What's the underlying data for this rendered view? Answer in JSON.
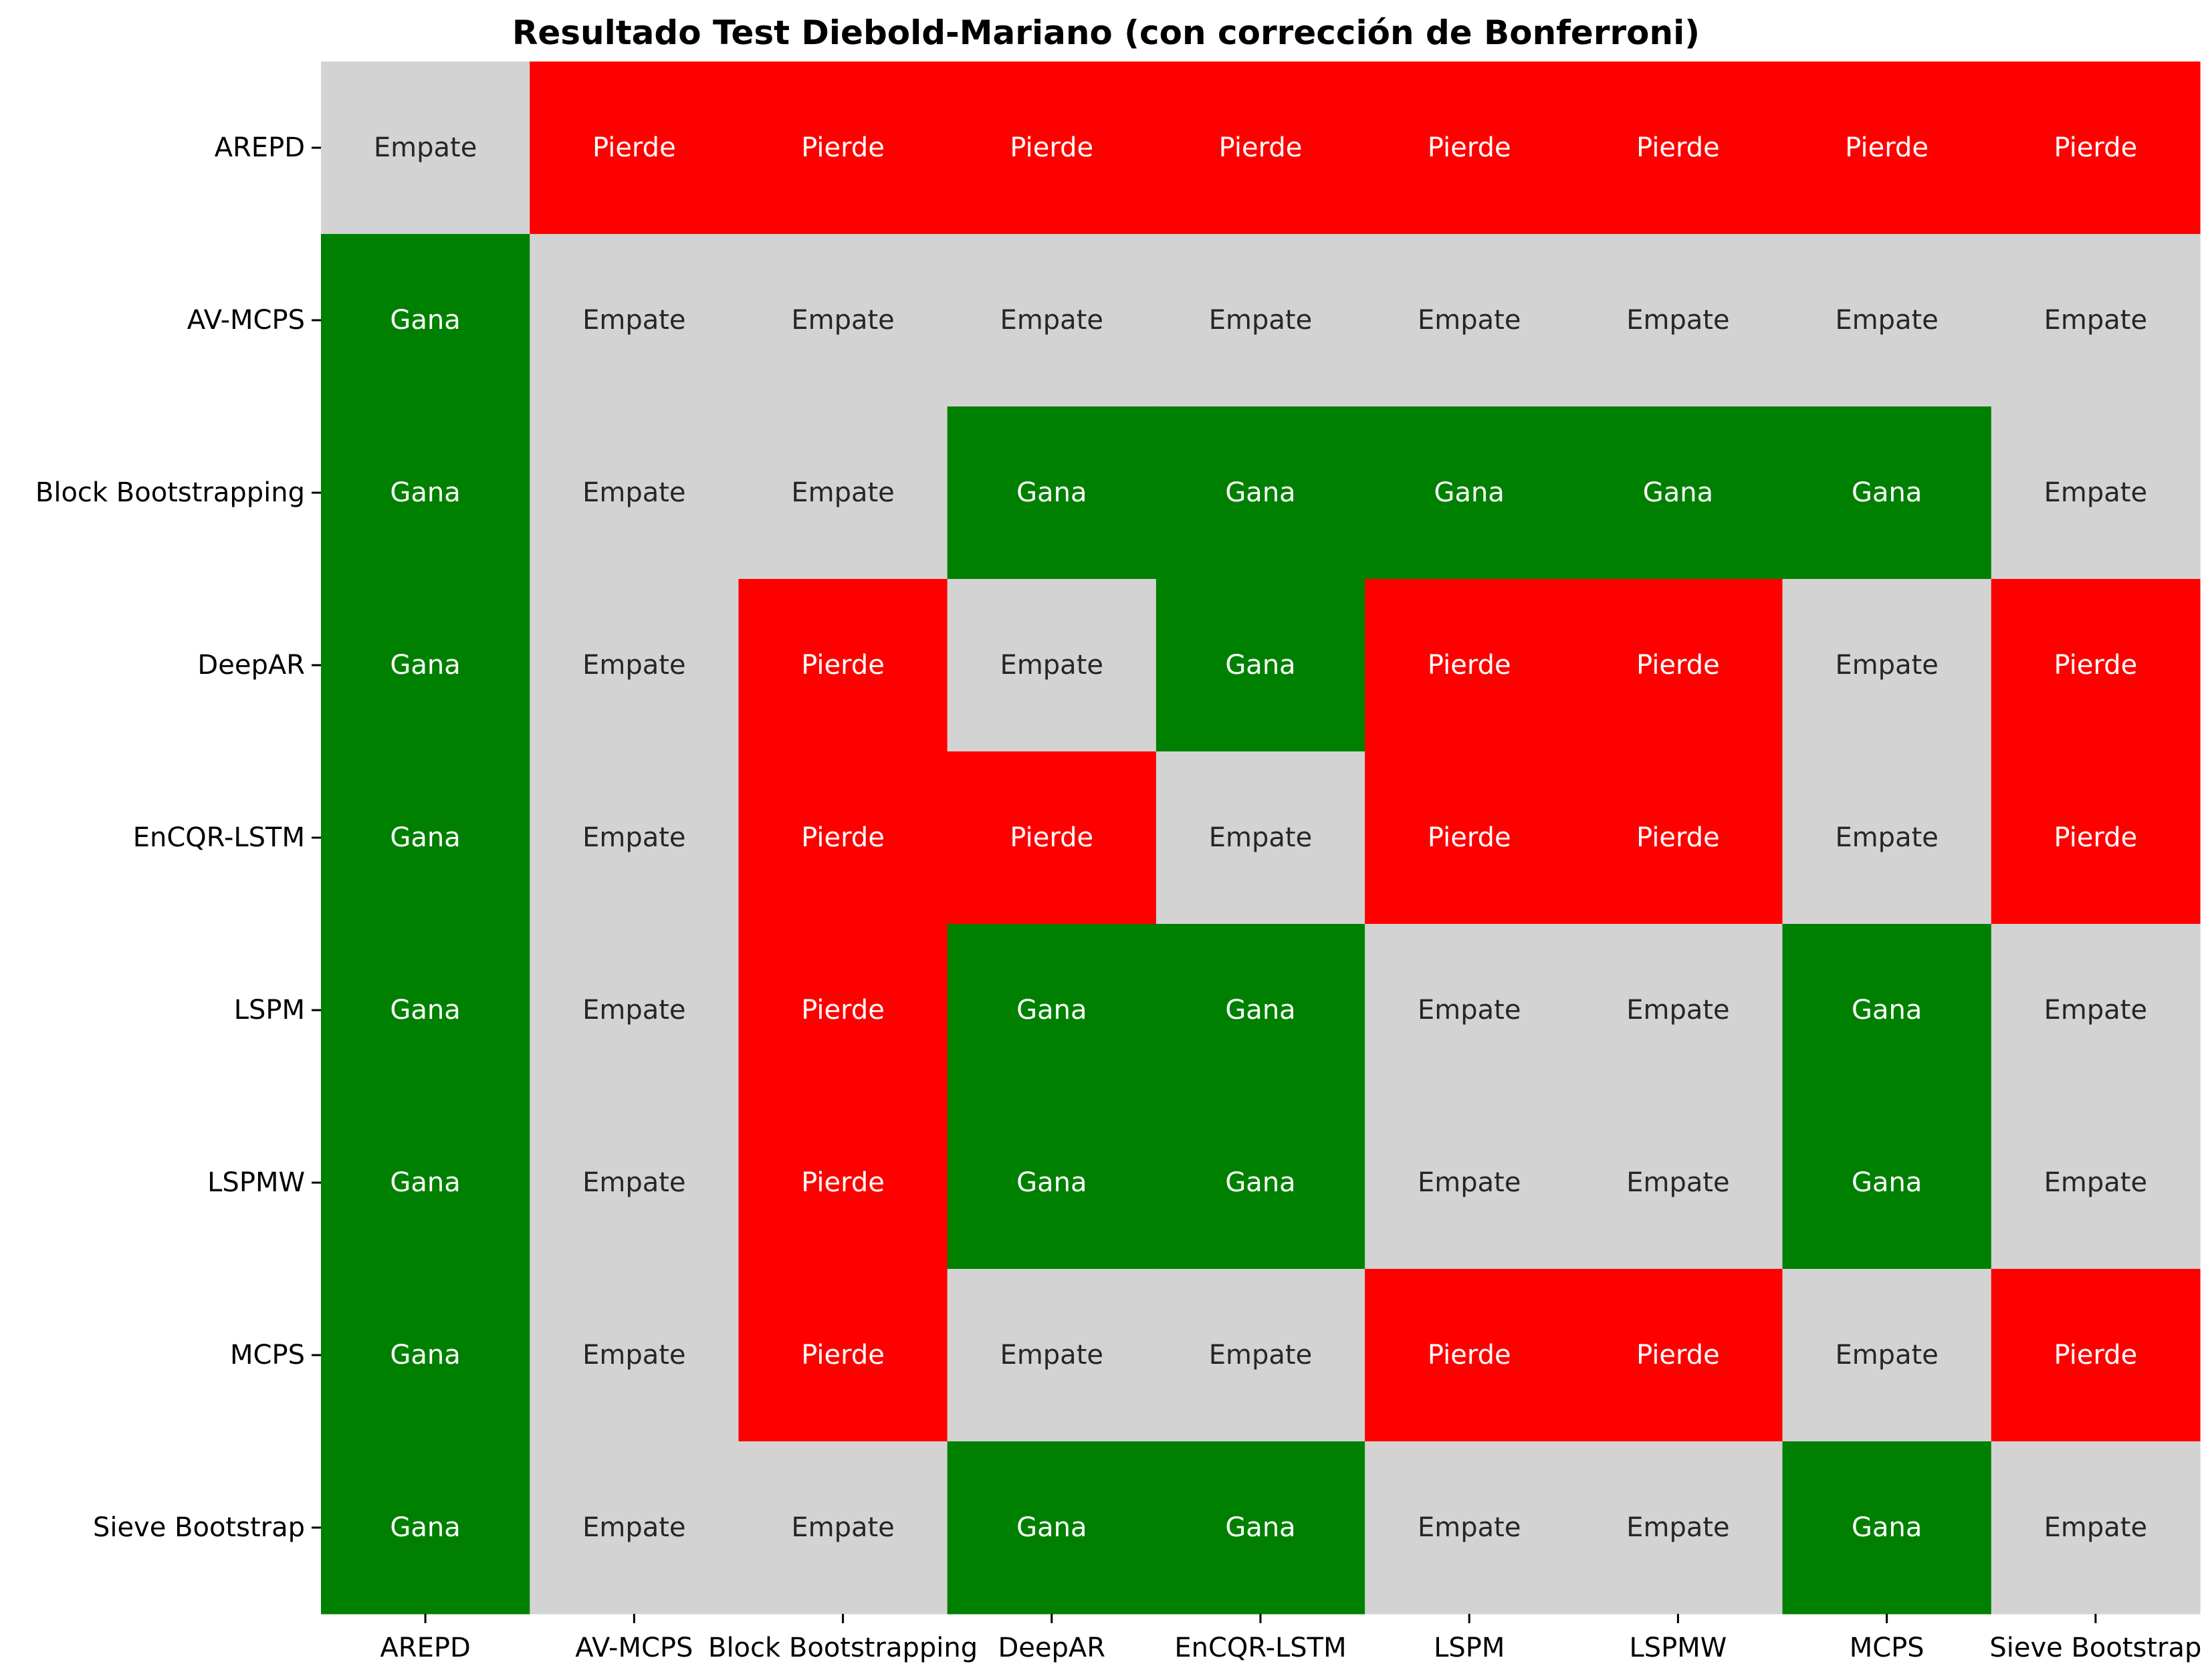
{
  "chart_data": {
    "type": "heatmap",
    "title": "Resultado Test Diebold-Mariano (con corrección de Bonferroni)",
    "xlabel": "",
    "ylabel": "",
    "rows": [
      "AREPD",
      "AV-MCPS",
      "Block Bootstrapping",
      "DeepAR",
      "EnCQR-LSTM",
      "LSPM",
      "LSPMW",
      "MCPS",
      "Sieve Bootstrap"
    ],
    "columns": [
      "AREPD",
      "AV-MCPS",
      "Block Bootstrapping",
      "DeepAR",
      "EnCQR-LSTM",
      "LSPM",
      "LSPMW",
      "MCPS",
      "Sieve Bootstrap"
    ],
    "values": [
      [
        "Empate",
        "Pierde",
        "Pierde",
        "Pierde",
        "Pierde",
        "Pierde",
        "Pierde",
        "Pierde",
        "Pierde"
      ],
      [
        "Gana",
        "Empate",
        "Empate",
        "Empate",
        "Empate",
        "Empate",
        "Empate",
        "Empate",
        "Empate"
      ],
      [
        "Gana",
        "Empate",
        "Empate",
        "Gana",
        "Gana",
        "Gana",
        "Gana",
        "Gana",
        "Empate"
      ],
      [
        "Gana",
        "Empate",
        "Pierde",
        "Empate",
        "Gana",
        "Pierde",
        "Pierde",
        "Empate",
        "Pierde"
      ],
      [
        "Gana",
        "Empate",
        "Pierde",
        "Pierde",
        "Empate",
        "Pierde",
        "Pierde",
        "Empate",
        "Pierde"
      ],
      [
        "Gana",
        "Empate",
        "Pierde",
        "Gana",
        "Gana",
        "Empate",
        "Empate",
        "Gana",
        "Empate"
      ],
      [
        "Gana",
        "Empate",
        "Pierde",
        "Gana",
        "Gana",
        "Empate",
        "Empate",
        "Gana",
        "Empate"
      ],
      [
        "Gana",
        "Empate",
        "Pierde",
        "Empate",
        "Empate",
        "Pierde",
        "Pierde",
        "Empate",
        "Pierde"
      ],
      [
        "Gana",
        "Empate",
        "Empate",
        "Gana",
        "Gana",
        "Empate",
        "Empate",
        "Gana",
        "Empate"
      ]
    ],
    "category_colors": {
      "Gana": "#008000",
      "Pierde": "#ff0000",
      "Empate": "#d3d3d3"
    },
    "label_colors": {
      "Gana": "#ffffff",
      "Pierde": "#ffffff",
      "Empate": "#262626"
    },
    "grid": false,
    "legend": "none"
  }
}
